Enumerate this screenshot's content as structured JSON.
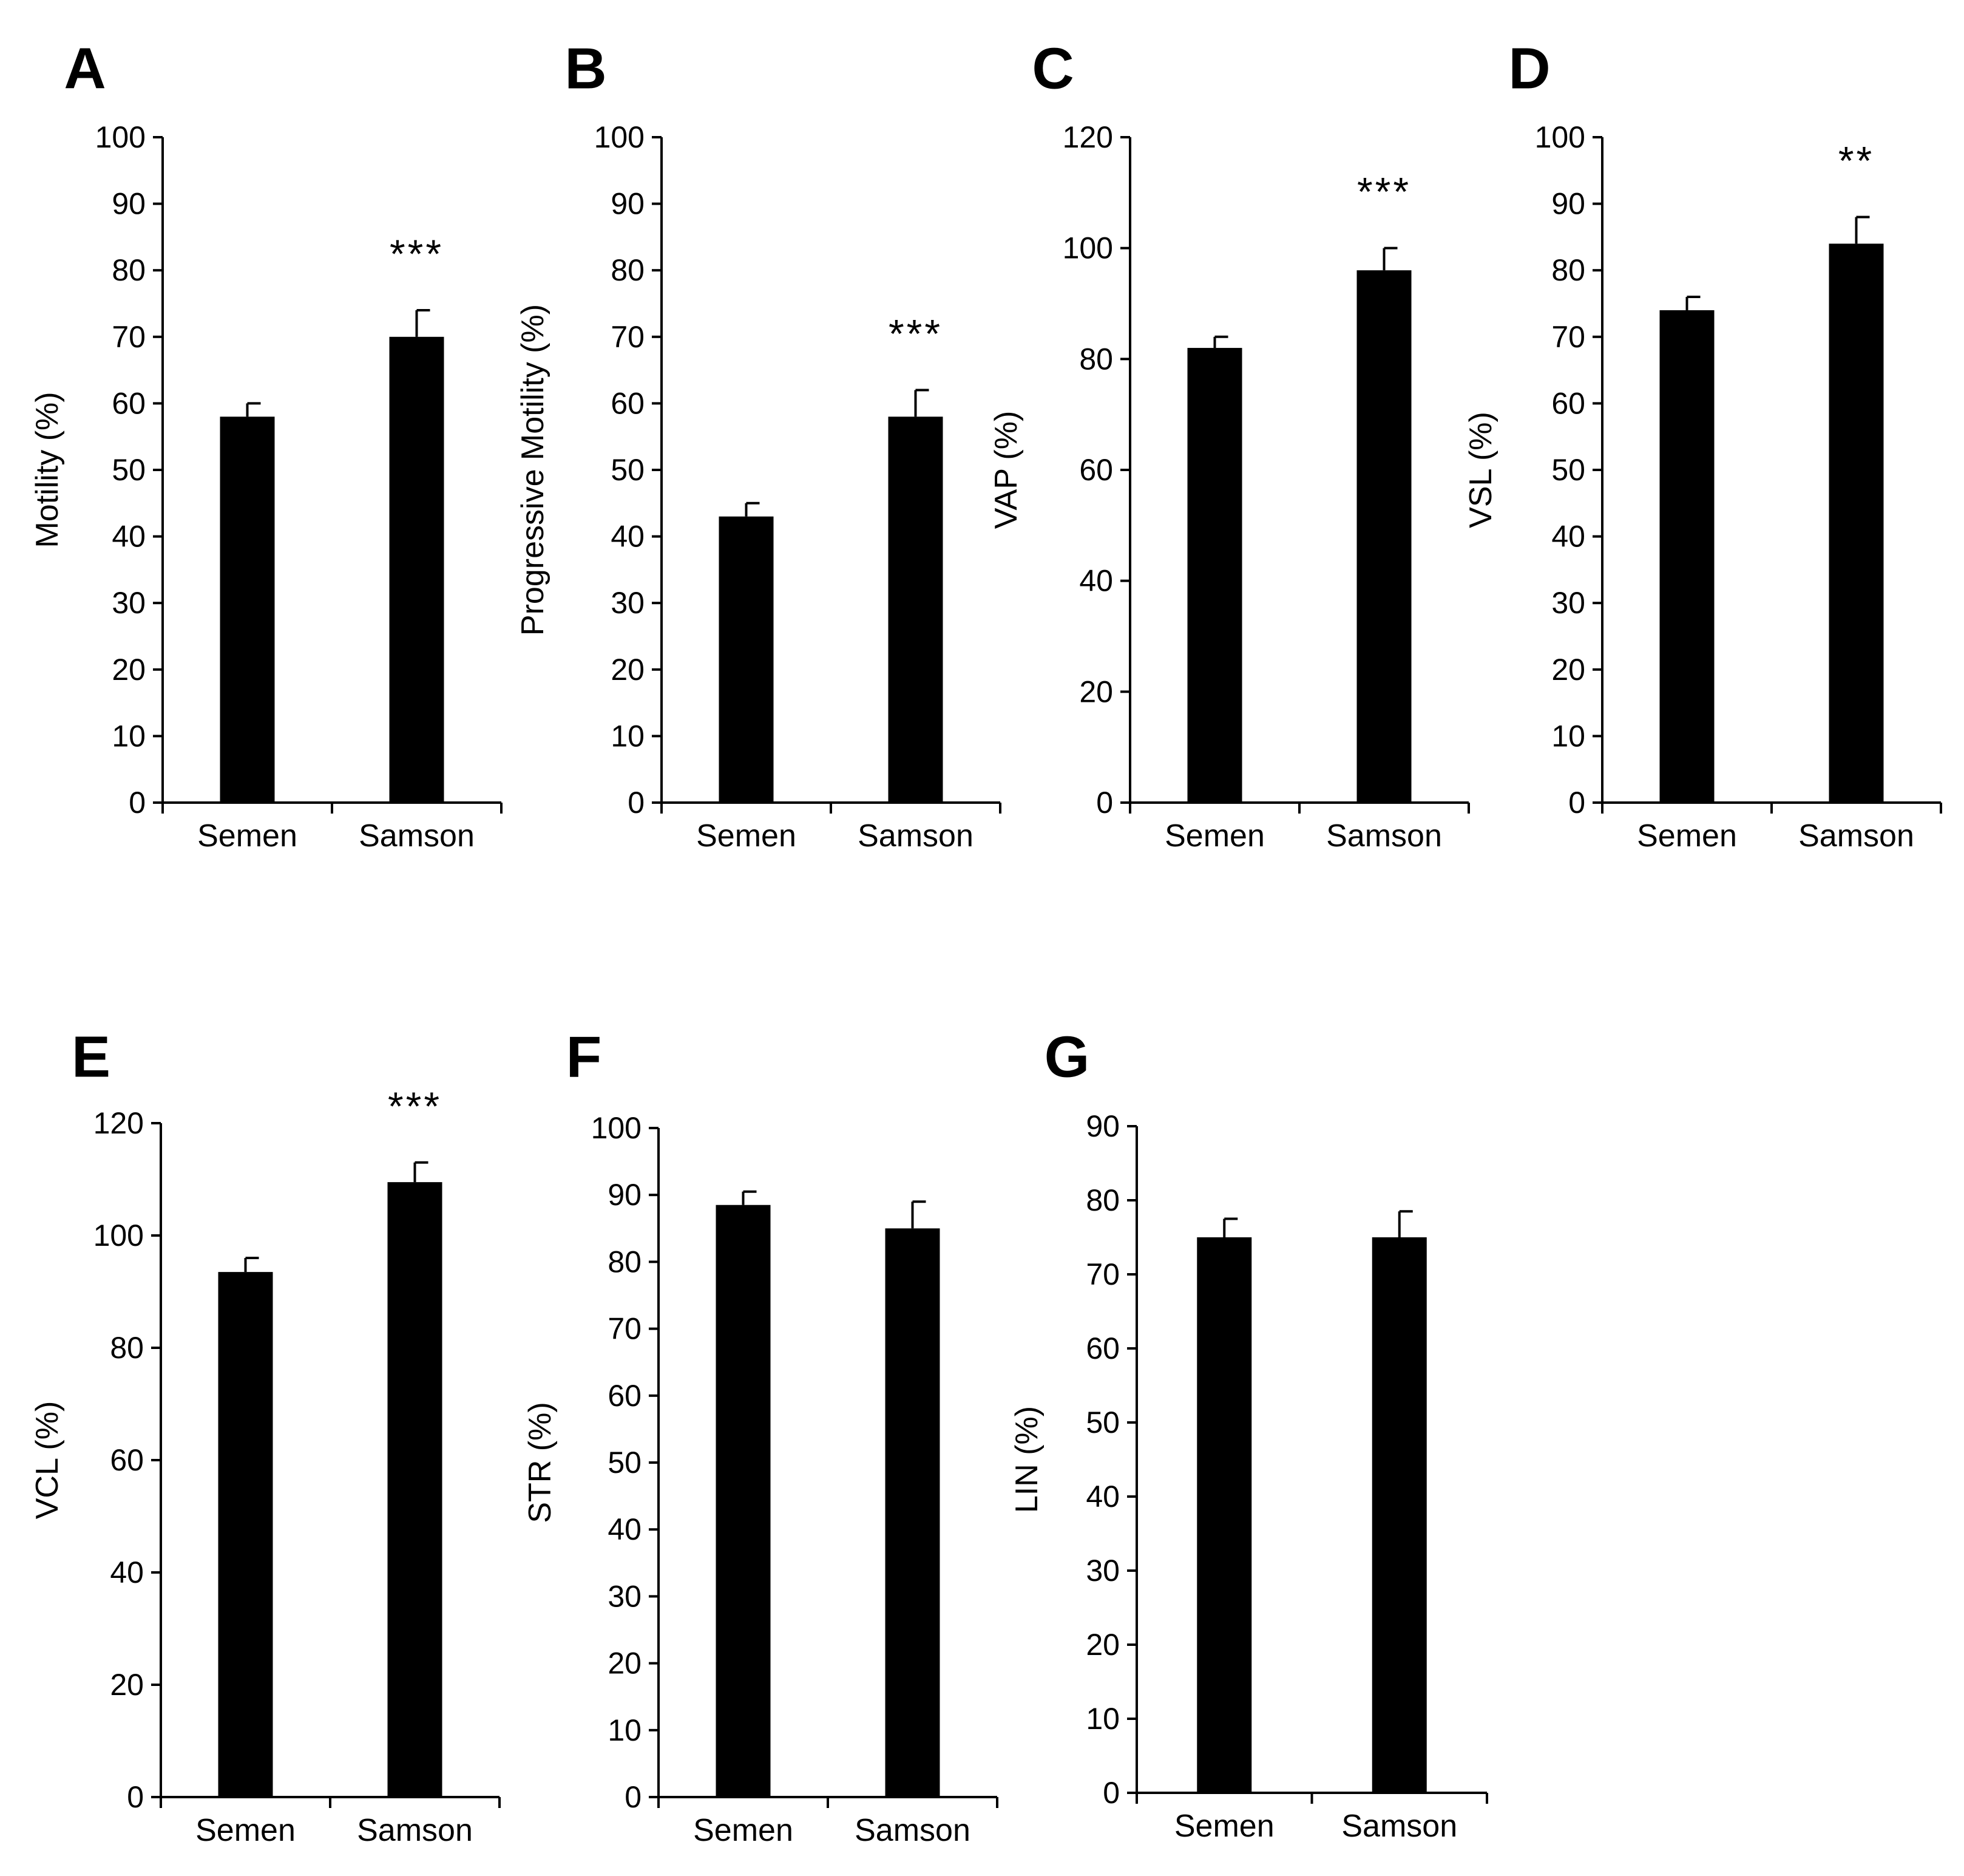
{
  "colors": {
    "bar": "#000000",
    "axis": "#000000",
    "background": "#ffffff"
  },
  "chart_data": [
    {
      "panel": "A",
      "type": "bar",
      "categories": [
        "Semen",
        "Samson"
      ],
      "values": [
        58,
        70
      ],
      "errors": [
        2,
        4
      ],
      "significance": [
        "",
        "***"
      ],
      "ylabel": "Motility (%)",
      "ylim": [
        0,
        100
      ],
      "yticks": [
        0,
        10,
        20,
        30,
        40,
        50,
        60,
        70,
        80,
        90,
        100
      ]
    },
    {
      "panel": "B",
      "type": "bar",
      "categories": [
        "Semen",
        "Samson"
      ],
      "values": [
        43,
        58
      ],
      "errors": [
        2,
        4
      ],
      "significance": [
        "",
        "***"
      ],
      "ylabel": "Progressive  Motility (%)",
      "ylim": [
        0,
        100
      ],
      "yticks": [
        0,
        10,
        20,
        30,
        40,
        50,
        60,
        70,
        80,
        90,
        100
      ]
    },
    {
      "panel": "C",
      "type": "bar",
      "categories": [
        "Semen",
        "Samson"
      ],
      "values": [
        82,
        96
      ],
      "errors": [
        2,
        4
      ],
      "significance": [
        "",
        "***"
      ],
      "ylabel": "VAP (%)",
      "ylim": [
        0,
        120
      ],
      "yticks": [
        0,
        20,
        40,
        60,
        80,
        100,
        120
      ]
    },
    {
      "panel": "D",
      "type": "bar",
      "categories": [
        "Semen",
        "Samson"
      ],
      "values": [
        74,
        84
      ],
      "errors": [
        2,
        4
      ],
      "significance": [
        "",
        "**"
      ],
      "ylabel": "VSL (%)",
      "ylim": [
        0,
        100
      ],
      "yticks": [
        0,
        10,
        20,
        30,
        40,
        50,
        60,
        70,
        80,
        90,
        100
      ]
    },
    {
      "panel": "E",
      "type": "bar",
      "categories": [
        "Semen",
        "Samson"
      ],
      "values": [
        93.5,
        109.5
      ],
      "errors": [
        2.5,
        3.5
      ],
      "significance": [
        "",
        "***"
      ],
      "ylabel": "VCL (%)",
      "ylim": [
        0,
        120
      ],
      "yticks": [
        0,
        20,
        40,
        60,
        80,
        100,
        120
      ]
    },
    {
      "panel": "F",
      "type": "bar",
      "categories": [
        "Semen",
        "Samson"
      ],
      "values": [
        88.5,
        85
      ],
      "errors": [
        2,
        4
      ],
      "significance": [
        "",
        ""
      ],
      "ylabel": "STR (%)",
      "ylim": [
        0,
        100
      ],
      "yticks": [
        0,
        10,
        20,
        30,
        40,
        50,
        60,
        70,
        80,
        90,
        100
      ]
    },
    {
      "panel": "G",
      "type": "bar",
      "categories": [
        "Semen",
        "Samson"
      ],
      "values": [
        75,
        75
      ],
      "errors": [
        2.5,
        3.5
      ],
      "significance": [
        "",
        ""
      ],
      "ylabel": "LIN (%)",
      "ylim": [
        0,
        90
      ],
      "yticks": [
        0,
        10,
        20,
        30,
        40,
        50,
        60,
        70,
        80,
        90
      ]
    }
  ]
}
